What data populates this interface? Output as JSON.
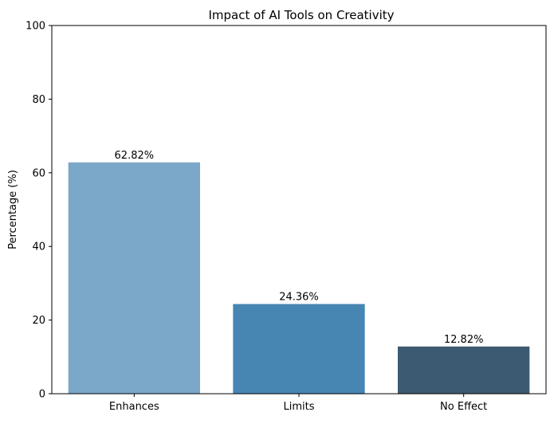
{
  "chart_data": {
    "type": "bar",
    "title": "Impact of AI Tools on Creativity",
    "xlabel": "",
    "ylabel": "Percentage (%)",
    "categories": [
      "Enhances",
      "Limits",
      "No Effect"
    ],
    "values": [
      62.82,
      24.36,
      12.82
    ],
    "value_labels": [
      "62.82%",
      "24.36%",
      "12.82%"
    ],
    "colors": [
      "#7ba7c9",
      "#4785b3",
      "#3d5a73"
    ],
    "ylim": [
      0,
      100
    ],
    "yticks": [
      0,
      20,
      40,
      60,
      80,
      100
    ],
    "grid": false,
    "legend": "none"
  }
}
